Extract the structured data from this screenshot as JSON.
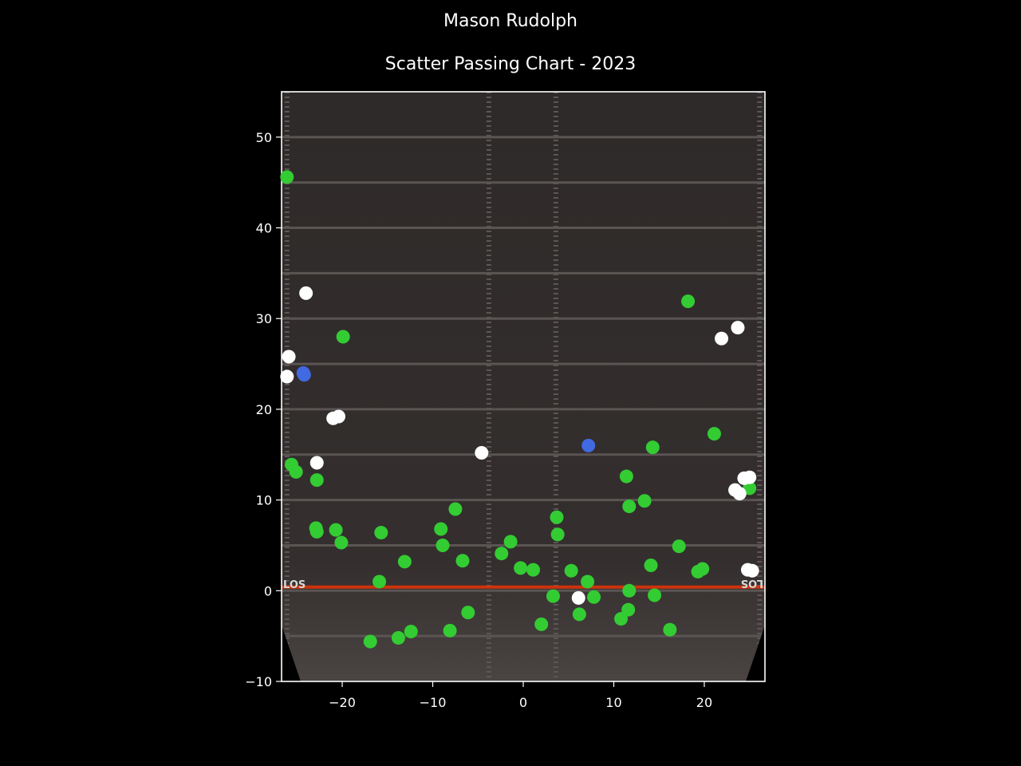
{
  "suptitle": "Mason Rudolph",
  "title": "Scatter Passing Chart - 2023",
  "field": {
    "los_label": "LOS"
  },
  "colors": {
    "complete": "#33cc33",
    "incomplete": "#ffffff",
    "touchdown": "#4169e1",
    "los_line": "#ff3300"
  },
  "chart_data": {
    "type": "scatter",
    "title": "Scatter Passing Chart - 2023",
    "xlabel": "",
    "ylabel": "",
    "xlim": [
      -26.7,
      26.7
    ],
    "ylim": [
      -10,
      55
    ],
    "xticks": [
      -20,
      -10,
      0,
      10,
      20
    ],
    "yticks": [
      -10,
      0,
      10,
      20,
      30,
      40,
      50
    ],
    "xtick_labels": [
      "−20",
      "−10",
      "0",
      "10",
      "20"
    ],
    "ytick_labels": [
      "−10",
      "0",
      "10",
      "20",
      "30",
      "40",
      "50"
    ],
    "grid": false,
    "series": [
      {
        "color": "#33cc33",
        "points": [
          [
            -26.1,
            45.6
          ],
          [
            -25.6,
            13.9
          ],
          [
            -25.1,
            13.1
          ],
          [
            -22.8,
            12.2
          ],
          [
            -22.9,
            6.9
          ],
          [
            -22.8,
            6.5
          ],
          [
            -20.7,
            6.7
          ],
          [
            -20.1,
            5.3
          ],
          [
            -19.9,
            28.0
          ],
          [
            -15.7,
            6.4
          ],
          [
            -15.9,
            1.0
          ],
          [
            -13.1,
            3.2
          ],
          [
            -16.9,
            -5.6
          ],
          [
            -13.8,
            -5.2
          ],
          [
            -12.4,
            -4.5
          ],
          [
            -9.1,
            6.8
          ],
          [
            -8.9,
            5.0
          ],
          [
            -7.5,
            9.0
          ],
          [
            -6.7,
            3.3
          ],
          [
            -6.1,
            -2.4
          ],
          [
            -8.1,
            -4.4
          ],
          [
            -2.4,
            4.1
          ],
          [
            -1.4,
            5.4
          ],
          [
            -0.3,
            2.5
          ],
          [
            1.1,
            2.3
          ],
          [
            2.0,
            -3.7
          ],
          [
            3.3,
            -0.6
          ],
          [
            3.7,
            8.1
          ],
          [
            3.8,
            6.2
          ],
          [
            5.3,
            2.2
          ],
          [
            6.2,
            -2.6
          ],
          [
            7.1,
            1.0
          ],
          [
            7.8,
            -0.7
          ],
          [
            10.8,
            -3.1
          ],
          [
            11.4,
            12.6
          ],
          [
            11.7,
            9.3
          ],
          [
            11.6,
            -2.1
          ],
          [
            11.7,
            0.0
          ],
          [
            13.4,
            9.9
          ],
          [
            14.1,
            2.8
          ],
          [
            14.3,
            15.8
          ],
          [
            14.5,
            -0.5
          ],
          [
            16.2,
            -4.3
          ],
          [
            17.2,
            4.9
          ],
          [
            18.2,
            31.9
          ],
          [
            19.3,
            2.1
          ],
          [
            19.8,
            2.4
          ],
          [
            21.1,
            17.3
          ],
          [
            25.0,
            11.3
          ]
        ]
      },
      {
        "color": "#ffffff",
        "points": [
          [
            -24.0,
            32.8
          ],
          [
            -25.9,
            25.8
          ],
          [
            -26.1,
            23.6
          ],
          [
            -22.8,
            14.1
          ],
          [
            -21.0,
            19.0
          ],
          [
            -20.4,
            19.2
          ],
          [
            -4.6,
            15.2
          ],
          [
            6.1,
            -0.8
          ],
          [
            21.9,
            27.8
          ],
          [
            23.7,
            29.0
          ],
          [
            23.4,
            11.1
          ],
          [
            23.9,
            10.7
          ],
          [
            24.4,
            12.4
          ],
          [
            25.0,
            12.5
          ],
          [
            24.8,
            2.3
          ],
          [
            25.3,
            2.2
          ]
        ]
      },
      {
        "color": "#4169e1",
        "points": [
          [
            -24.3,
            24.0
          ],
          [
            -24.2,
            23.8
          ],
          [
            7.2,
            16.0
          ]
        ]
      }
    ]
  }
}
